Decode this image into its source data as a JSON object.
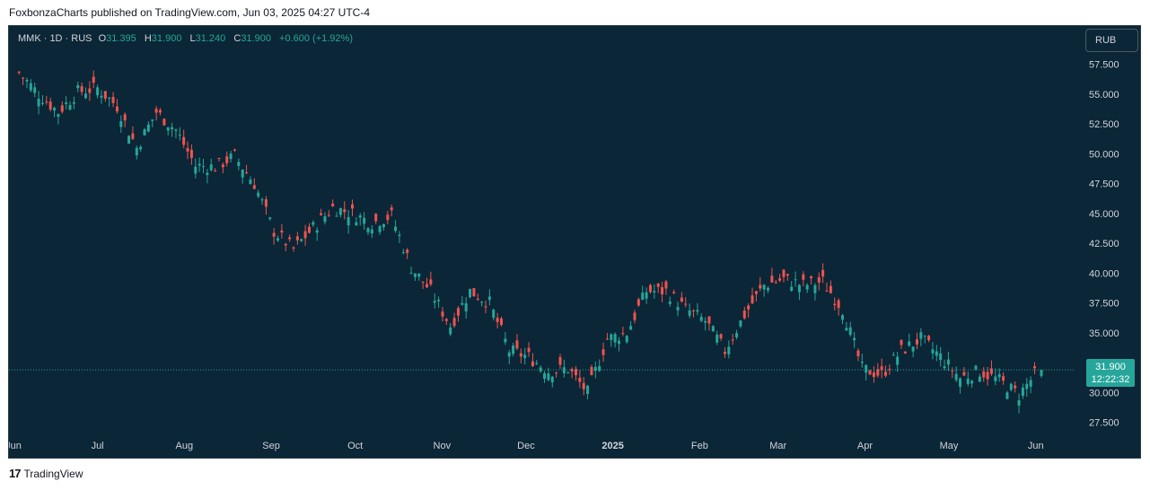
{
  "header": {
    "published_text": "FoxbonzaCharts published on TradingView.com, Jun 03, 2025 04:27 UTC-4"
  },
  "legend": {
    "symbol": "MMK · 1D · RUS",
    "open_label": "O",
    "open": "31.395",
    "high_label": "H",
    "high": "31.900",
    "low_label": "L",
    "low": "31.240",
    "close_label": "C",
    "close": "31.900",
    "change": "+0.600 (+1.92%)"
  },
  "currency_button": {
    "label": "RUB"
  },
  "last_price": {
    "value": "31.900",
    "countdown": "12:22:32"
  },
  "footer": {
    "brand_logo": "17",
    "brand": "TradingView"
  },
  "colors": {
    "background": "#0b2636",
    "up": "#26a69a",
    "down": "#ef5350",
    "axis_text": "#d1d4dc"
  },
  "chart_data": {
    "type": "candlestick",
    "title": "",
    "symbol": "MMK",
    "interval": "1D",
    "exchange": "RUS",
    "currency": "RUB",
    "grid": false,
    "y_axis": {
      "side": "right",
      "ticks": [
        "57.500",
        "55.000",
        "52.500",
        "50.000",
        "47.500",
        "45.000",
        "42.500",
        "40.000",
        "37.500",
        "35.000",
        "32.500",
        "30.000",
        "27.500"
      ],
      "ylim": [
        26.5,
        59.2
      ]
    },
    "x_axis": {
      "ticks": [
        "Jun",
        "Jul",
        "Aug",
        "Sep",
        "Oct",
        "Nov",
        "Dec",
        "2025",
        "Feb",
        "Mar",
        "Apr",
        "May",
        "Jun"
      ]
    },
    "closing_path": [
      [
        "2024-06-03",
        56.8
      ],
      [
        "2024-06-10",
        55.0
      ],
      [
        "2024-06-17",
        53.5
      ],
      [
        "2024-06-24",
        55.2
      ],
      [
        "2024-07-01",
        55.5
      ],
      [
        "2024-07-08",
        54.0
      ],
      [
        "2024-07-15",
        50.5
      ],
      [
        "2024-07-22",
        53.5
      ],
      [
        "2024-07-29",
        52.0
      ],
      [
        "2024-08-05",
        49.0
      ],
      [
        "2024-08-12",
        48.9
      ],
      [
        "2024-08-19",
        49.8
      ],
      [
        "2024-08-26",
        47.5
      ],
      [
        "2024-09-02",
        43.5
      ],
      [
        "2024-09-09",
        42.0
      ],
      [
        "2024-09-16",
        43.8
      ],
      [
        "2024-09-23",
        45.5
      ],
      [
        "2024-09-30",
        45.0
      ],
      [
        "2024-10-07",
        44.2
      ],
      [
        "2024-10-14",
        44.8
      ],
      [
        "2024-10-21",
        40.5
      ],
      [
        "2024-10-28",
        38.5
      ],
      [
        "2024-11-04",
        35.6
      ],
      [
        "2024-11-11",
        38.5
      ],
      [
        "2024-11-18",
        37.5
      ],
      [
        "2024-11-25",
        33.5
      ],
      [
        "2024-12-02",
        33.0
      ],
      [
        "2024-12-09",
        31.8
      ],
      [
        "2024-12-16",
        32.0
      ],
      [
        "2024-12-23",
        30.0
      ],
      [
        "2024-12-30",
        34.5
      ],
      [
        "2025-01-06",
        35.0
      ],
      [
        "2025-01-13",
        38.5
      ],
      [
        "2025-01-20",
        38.5
      ],
      [
        "2025-01-27",
        37.0
      ],
      [
        "2025-02-03",
        36.0
      ],
      [
        "2025-02-10",
        33.5
      ],
      [
        "2025-02-17",
        36.5
      ],
      [
        "2025-02-24",
        39.0
      ],
      [
        "2025-03-03",
        39.5
      ],
      [
        "2025-03-10",
        39.0
      ],
      [
        "2025-03-17",
        39.3
      ],
      [
        "2025-03-24",
        37.0
      ],
      [
        "2025-03-31",
        32.0
      ],
      [
        "2025-04-07",
        31.5
      ],
      [
        "2025-04-14",
        33.5
      ],
      [
        "2025-04-21",
        34.5
      ],
      [
        "2025-04-28",
        33.0
      ],
      [
        "2025-05-05",
        31.2
      ],
      [
        "2025-05-12",
        31.8
      ],
      [
        "2025-05-19",
        31.0
      ],
      [
        "2025-05-26",
        29.8
      ],
      [
        "2025-06-02",
        31.9
      ]
    ],
    "last": {
      "open": 31.395,
      "high": 31.9,
      "low": 31.24,
      "close": 31.9,
      "change": 0.6,
      "change_pct": 1.92
    }
  }
}
